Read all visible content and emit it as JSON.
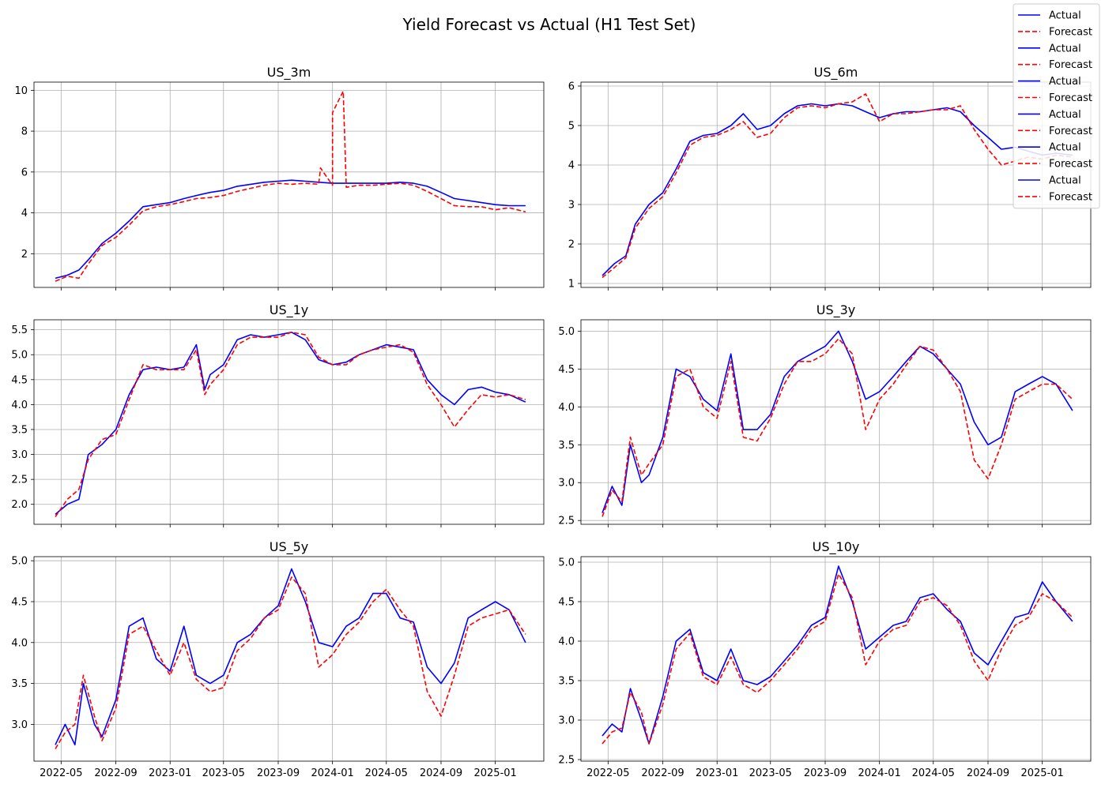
{
  "title": "Yield Forecast vs Actual (H1 Test Set)",
  "colors": {
    "actual": "#0000ff",
    "forecast": "#ff0000",
    "grid": "#b0b0b0"
  },
  "legend": {
    "placement": "top-right",
    "entries": [
      {
        "label": "Actual",
        "style": "solid",
        "color": "#0000ff"
      },
      {
        "label": "Forecast",
        "style": "dashed",
        "color": "#ff0000"
      },
      {
        "label": "Actual",
        "style": "solid",
        "color": "#0000ff"
      },
      {
        "label": "Forecast",
        "style": "dashed",
        "color": "#ff0000"
      },
      {
        "label": "Actual",
        "style": "solid",
        "color": "#0000ff"
      },
      {
        "label": "Forecast",
        "style": "dashed",
        "color": "#ff0000"
      },
      {
        "label": "Actual",
        "style": "solid",
        "color": "#0000ff"
      },
      {
        "label": "Forecast",
        "style": "dashed",
        "color": "#ff0000"
      },
      {
        "label": "Actual",
        "style": "solid",
        "color": "#0000ff"
      },
      {
        "label": "Forecast",
        "style": "dashed",
        "color": "#ff0000"
      },
      {
        "label": "Actual",
        "style": "solid",
        "color": "#0000ff"
      },
      {
        "label": "Forecast",
        "style": "dashed",
        "color": "#ff0000"
      }
    ]
  },
  "chart_data": [
    {
      "type": "line",
      "title": "US_3m",
      "grid": true,
      "xlim": [
        "2022-03-01",
        "2025-04-20"
      ],
      "x_ticks": [
        "2022-05",
        "2022-09",
        "2023-01",
        "2023-05",
        "2023-09",
        "2024-01",
        "2024-05",
        "2024-09",
        "2025-01"
      ],
      "show_x_tick_labels": false,
      "ylim": [
        0.35,
        10.4
      ],
      "y_ticks": [
        2,
        4,
        6,
        8,
        10
      ],
      "x": [
        "2022-04-18",
        "2022-05-15",
        "2022-06-10",
        "2022-07-01",
        "2022-08-01",
        "2022-09-01",
        "2022-10-01",
        "2022-11-01",
        "2022-12-01",
        "2023-01-01",
        "2023-02-01",
        "2023-03-01",
        "2023-04-01",
        "2023-05-01",
        "2023-06-01",
        "2023-07-01",
        "2023-08-01",
        "2023-09-01",
        "2023-10-01",
        "2023-11-01",
        "2023-12-01",
        "2024-01-01",
        "2024-02-01",
        "2024-03-01",
        "2024-04-01",
        "2024-05-01",
        "2024-06-01",
        "2024-07-01",
        "2024-08-01",
        "2024-09-01",
        "2024-10-01",
        "2024-11-01",
        "2024-12-01",
        "2025-01-01",
        "2025-02-01",
        "2025-03-10"
      ],
      "series": [
        {
          "name": "Actual",
          "values": [
            0.8,
            0.95,
            1.2,
            1.7,
            2.5,
            3.0,
            3.6,
            4.3,
            4.4,
            4.5,
            4.7,
            4.85,
            5.0,
            5.1,
            5.3,
            5.4,
            5.5,
            5.55,
            5.6,
            5.55,
            5.5,
            5.45,
            5.45,
            5.45,
            5.45,
            5.45,
            5.5,
            5.45,
            5.3,
            5.0,
            4.7,
            4.6,
            4.5,
            4.4,
            4.35,
            4.35
          ]
        },
        {
          "name": "Forecast",
          "values": [
            0.65,
            0.9,
            0.8,
            1.5,
            2.4,
            2.8,
            3.4,
            4.1,
            4.3,
            4.4,
            4.55,
            4.7,
            4.75,
            4.85,
            5.05,
            5.2,
            5.35,
            5.45,
            5.4,
            5.45,
            5.4,
            5.35,
            5.25,
            5.35,
            5.35,
            5.4,
            5.45,
            5.35,
            5.05,
            4.7,
            4.35,
            4.3,
            4.3,
            4.15,
            4.25,
            4.05
          ],
          "spikes": [
            {
              "x": "2023-12-05",
              "y": 6.2
            },
            {
              "x": "2024-01-01",
              "y": 8.9
            },
            {
              "x": "2024-01-25",
              "y": 9.95
            }
          ]
        }
      ]
    },
    {
      "type": "line",
      "title": "US_6m",
      "grid": true,
      "xlim": [
        "2022-03-01",
        "2025-04-20"
      ],
      "x_ticks": [
        "2022-05",
        "2022-09",
        "2023-01",
        "2023-05",
        "2023-09",
        "2024-01",
        "2024-05",
        "2024-09",
        "2025-01"
      ],
      "show_x_tick_labels": false,
      "ylim": [
        0.9,
        6.1
      ],
      "y_ticks": [
        1,
        2,
        3,
        4,
        5,
        6
      ],
      "x": [
        "2022-04-18",
        "2022-05-15",
        "2022-06-10",
        "2022-07-01",
        "2022-08-01",
        "2022-09-01",
        "2022-10-01",
        "2022-11-01",
        "2022-12-01",
        "2023-01-01",
        "2023-02-01",
        "2023-03-01",
        "2023-04-01",
        "2023-05-01",
        "2023-06-01",
        "2023-07-01",
        "2023-08-01",
        "2023-09-01",
        "2023-10-01",
        "2023-11-01",
        "2023-12-01",
        "2024-01-01",
        "2024-02-01",
        "2024-03-01",
        "2024-04-01",
        "2024-05-01",
        "2024-06-01",
        "2024-07-01",
        "2024-08-01",
        "2024-09-01",
        "2024-10-01",
        "2024-11-01",
        "2024-12-01",
        "2025-01-01",
        "2025-02-01",
        "2025-03-10"
      ],
      "series": [
        {
          "name": "Actual",
          "values": [
            1.2,
            1.5,
            1.7,
            2.5,
            3.0,
            3.3,
            3.9,
            4.6,
            4.75,
            4.8,
            5.0,
            5.3,
            4.9,
            5.0,
            5.3,
            5.5,
            5.55,
            5.5,
            5.55,
            5.5,
            5.35,
            5.2,
            5.3,
            5.35,
            5.35,
            5.4,
            5.45,
            5.35,
            5.0,
            4.7,
            4.4,
            4.45,
            4.35,
            4.25,
            4.3,
            4.25
          ]
        },
        {
          "name": "Forecast",
          "values": [
            1.15,
            1.4,
            1.65,
            2.4,
            2.9,
            3.2,
            3.8,
            4.5,
            4.7,
            4.75,
            4.9,
            5.1,
            4.7,
            4.8,
            5.2,
            5.45,
            5.5,
            5.45,
            5.55,
            5.6,
            5.8,
            5.1,
            5.3,
            5.3,
            5.35,
            5.4,
            5.4,
            5.5,
            4.9,
            4.4,
            4.0,
            4.1,
            4.2,
            4.15,
            4.25,
            4.2
          ]
        }
      ]
    },
    {
      "type": "line",
      "title": "US_1y",
      "grid": true,
      "xlim": [
        "2022-03-01",
        "2025-04-20"
      ],
      "x_ticks": [
        "2022-05",
        "2022-09",
        "2023-01",
        "2023-05",
        "2023-09",
        "2024-01",
        "2024-05",
        "2024-09",
        "2025-01"
      ],
      "show_x_tick_labels": false,
      "ylim": [
        1.6,
        5.7
      ],
      "y_ticks": [
        2.0,
        2.5,
        3.0,
        3.5,
        4.0,
        4.5,
        5.0,
        5.5
      ],
      "x": [
        "2022-04-18",
        "2022-05-15",
        "2022-06-10",
        "2022-07-01",
        "2022-08-01",
        "2022-09-01",
        "2022-10-01",
        "2022-11-01",
        "2022-12-01",
        "2023-01-01",
        "2023-02-01",
        "2023-03-01",
        "2023-03-20",
        "2023-04-01",
        "2023-05-01",
        "2023-06-01",
        "2023-07-01",
        "2023-08-01",
        "2023-09-01",
        "2023-10-01",
        "2023-11-01",
        "2023-12-01",
        "2024-01-01",
        "2024-02-01",
        "2024-03-01",
        "2024-04-01",
        "2024-05-01",
        "2024-06-01",
        "2024-07-01",
        "2024-08-01",
        "2024-09-01",
        "2024-10-01",
        "2024-11-01",
        "2024-12-01",
        "2025-01-01",
        "2025-02-01",
        "2025-03-10"
      ],
      "series": [
        {
          "name": "Actual",
          "values": [
            1.8,
            2.0,
            2.1,
            3.0,
            3.2,
            3.5,
            4.2,
            4.7,
            4.75,
            4.7,
            4.75,
            5.2,
            4.3,
            4.6,
            4.8,
            5.3,
            5.4,
            5.35,
            5.4,
            5.45,
            5.3,
            4.9,
            4.8,
            4.85,
            5.0,
            5.1,
            5.2,
            5.15,
            5.1,
            4.5,
            4.2,
            4.0,
            4.3,
            4.35,
            4.25,
            4.2,
            4.05
          ]
        },
        {
          "name": "Forecast",
          "values": [
            1.75,
            2.1,
            2.3,
            2.9,
            3.3,
            3.4,
            4.1,
            4.8,
            4.7,
            4.7,
            4.7,
            5.1,
            4.2,
            4.4,
            4.7,
            5.2,
            5.35,
            5.35,
            5.35,
            5.45,
            5.4,
            4.95,
            4.8,
            4.8,
            5.0,
            5.1,
            5.15,
            5.2,
            5.05,
            4.4,
            4.0,
            3.55,
            3.9,
            4.2,
            4.15,
            4.2,
            4.1
          ]
        }
      ]
    },
    {
      "type": "line",
      "title": "US_3y",
      "grid": true,
      "xlim": [
        "2022-03-01",
        "2025-04-20"
      ],
      "x_ticks": [
        "2022-05",
        "2022-09",
        "2023-01",
        "2023-05",
        "2023-09",
        "2024-01",
        "2024-05",
        "2024-09",
        "2025-01"
      ],
      "show_x_tick_labels": false,
      "ylim": [
        2.45,
        5.15
      ],
      "y_ticks": [
        2.5,
        3.0,
        3.5,
        4.0,
        4.5,
        5.0
      ],
      "x": [
        "2022-04-18",
        "2022-05-10",
        "2022-06-01",
        "2022-06-20",
        "2022-07-15",
        "2022-08-01",
        "2022-09-01",
        "2022-10-01",
        "2022-11-01",
        "2022-12-01",
        "2023-01-01",
        "2023-02-01",
        "2023-03-01",
        "2023-04-01",
        "2023-05-01",
        "2023-06-01",
        "2023-07-01",
        "2023-08-01",
        "2023-09-01",
        "2023-10-01",
        "2023-11-01",
        "2023-12-01",
        "2024-01-01",
        "2024-02-01",
        "2024-03-01",
        "2024-04-01",
        "2024-05-01",
        "2024-06-01",
        "2024-07-01",
        "2024-08-01",
        "2024-09-01",
        "2024-10-01",
        "2024-11-01",
        "2024-12-01",
        "2025-01-01",
        "2025-02-01",
        "2025-03-10"
      ],
      "series": [
        {
          "name": "Actual",
          "values": [
            2.6,
            2.95,
            2.7,
            3.5,
            3.0,
            3.1,
            3.6,
            4.5,
            4.4,
            4.1,
            3.95,
            4.7,
            3.7,
            3.7,
            3.9,
            4.4,
            4.6,
            4.7,
            4.8,
            5.0,
            4.6,
            4.1,
            4.2,
            4.4,
            4.6,
            4.8,
            4.7,
            4.5,
            4.3,
            3.8,
            3.5,
            3.6,
            4.2,
            4.3,
            4.4,
            4.3,
            3.95
          ]
        },
        {
          "name": "Forecast",
          "values": [
            2.55,
            2.9,
            2.75,
            3.6,
            3.1,
            3.25,
            3.5,
            4.4,
            4.5,
            4.0,
            3.85,
            4.6,
            3.6,
            3.55,
            3.85,
            4.3,
            4.6,
            4.6,
            4.7,
            4.9,
            4.7,
            3.7,
            4.1,
            4.3,
            4.55,
            4.8,
            4.75,
            4.5,
            4.2,
            3.3,
            3.05,
            3.5,
            4.1,
            4.2,
            4.3,
            4.3,
            4.1
          ]
        }
      ]
    },
    {
      "type": "line",
      "title": "US_5y",
      "grid": true,
      "xlim": [
        "2022-03-01",
        "2025-04-20"
      ],
      "x_ticks": [
        "2022-05",
        "2022-09",
        "2023-01",
        "2023-05",
        "2023-09",
        "2024-01",
        "2024-05",
        "2024-09",
        "2025-01"
      ],
      "show_x_tick_labels": true,
      "ylim": [
        2.55,
        5.05
      ],
      "y_ticks": [
        3.0,
        3.5,
        4.0,
        4.5,
        5.0
      ],
      "x": [
        "2022-04-18",
        "2022-05-10",
        "2022-06-01",
        "2022-06-20",
        "2022-07-15",
        "2022-08-01",
        "2022-09-01",
        "2022-10-01",
        "2022-11-01",
        "2022-12-01",
        "2023-01-01",
        "2023-02-01",
        "2023-03-01",
        "2023-04-01",
        "2023-05-01",
        "2023-06-01",
        "2023-07-01",
        "2023-08-01",
        "2023-09-01",
        "2023-10-01",
        "2023-11-01",
        "2023-12-01",
        "2024-01-01",
        "2024-02-01",
        "2024-03-01",
        "2024-04-01",
        "2024-05-01",
        "2024-06-01",
        "2024-07-01",
        "2024-08-01",
        "2024-09-01",
        "2024-10-01",
        "2024-11-01",
        "2024-12-01",
        "2025-01-01",
        "2025-02-01",
        "2025-03-10"
      ],
      "series": [
        {
          "name": "Actual",
          "values": [
            2.75,
            3.0,
            2.75,
            3.5,
            3.0,
            2.85,
            3.3,
            4.2,
            4.3,
            3.8,
            3.65,
            4.2,
            3.6,
            3.5,
            3.6,
            4.0,
            4.1,
            4.3,
            4.45,
            4.9,
            4.5,
            4.0,
            3.95,
            4.2,
            4.3,
            4.6,
            4.6,
            4.3,
            4.25,
            3.7,
            3.5,
            3.75,
            4.3,
            4.4,
            4.5,
            4.4,
            4.0
          ]
        },
        {
          "name": "Forecast",
          "values": [
            2.7,
            2.9,
            3.0,
            3.6,
            3.1,
            2.8,
            3.2,
            4.1,
            4.2,
            3.9,
            3.6,
            4.0,
            3.55,
            3.4,
            3.45,
            3.9,
            4.05,
            4.3,
            4.4,
            4.8,
            4.6,
            3.7,
            3.85,
            4.1,
            4.25,
            4.5,
            4.65,
            4.4,
            4.2,
            3.4,
            3.1,
            3.6,
            4.2,
            4.3,
            4.35,
            4.4,
            4.1
          ]
        }
      ]
    },
    {
      "type": "line",
      "title": "US_10y",
      "grid": true,
      "xlim": [
        "2022-03-01",
        "2025-04-20"
      ],
      "x_ticks": [
        "2022-05",
        "2022-09",
        "2023-01",
        "2023-05",
        "2023-09",
        "2024-01",
        "2024-05",
        "2024-09",
        "2025-01"
      ],
      "show_x_tick_labels": true,
      "ylim": [
        2.48,
        5.07
      ],
      "y_ticks": [
        2.5,
        3.0,
        3.5,
        4.0,
        4.5,
        5.0
      ],
      "x": [
        "2022-04-18",
        "2022-05-10",
        "2022-06-01",
        "2022-06-20",
        "2022-07-15",
        "2022-08-01",
        "2022-09-01",
        "2022-10-01",
        "2022-11-01",
        "2022-12-01",
        "2023-01-01",
        "2023-02-01",
        "2023-03-01",
        "2023-04-01",
        "2023-05-01",
        "2023-06-01",
        "2023-07-01",
        "2023-08-01",
        "2023-09-01",
        "2023-10-01",
        "2023-11-01",
        "2023-12-01",
        "2024-01-01",
        "2024-02-01",
        "2024-03-01",
        "2024-04-01",
        "2024-05-01",
        "2024-06-01",
        "2024-07-01",
        "2024-08-01",
        "2024-09-01",
        "2024-10-01",
        "2024-11-01",
        "2024-12-01",
        "2025-01-01",
        "2025-02-01",
        "2025-03-10"
      ],
      "series": [
        {
          "name": "Actual",
          "values": [
            2.8,
            2.95,
            2.85,
            3.4,
            3.0,
            2.7,
            3.3,
            4.0,
            4.15,
            3.6,
            3.5,
            3.9,
            3.5,
            3.45,
            3.55,
            3.75,
            3.95,
            4.2,
            4.3,
            4.95,
            4.5,
            3.9,
            4.05,
            4.2,
            4.25,
            4.55,
            4.6,
            4.4,
            4.25,
            3.85,
            3.7,
            4.0,
            4.3,
            4.35,
            4.75,
            4.5,
            4.25
          ]
        },
        {
          "name": "Forecast",
          "values": [
            2.7,
            2.85,
            2.9,
            3.35,
            3.1,
            2.7,
            3.2,
            3.9,
            4.1,
            3.55,
            3.45,
            3.8,
            3.45,
            3.35,
            3.5,
            3.7,
            3.9,
            4.15,
            4.25,
            4.85,
            4.55,
            3.7,
            4.0,
            4.15,
            4.2,
            4.5,
            4.55,
            4.45,
            4.2,
            3.75,
            3.5,
            3.9,
            4.2,
            4.3,
            4.6,
            4.5,
            4.3
          ]
        }
      ]
    }
  ]
}
